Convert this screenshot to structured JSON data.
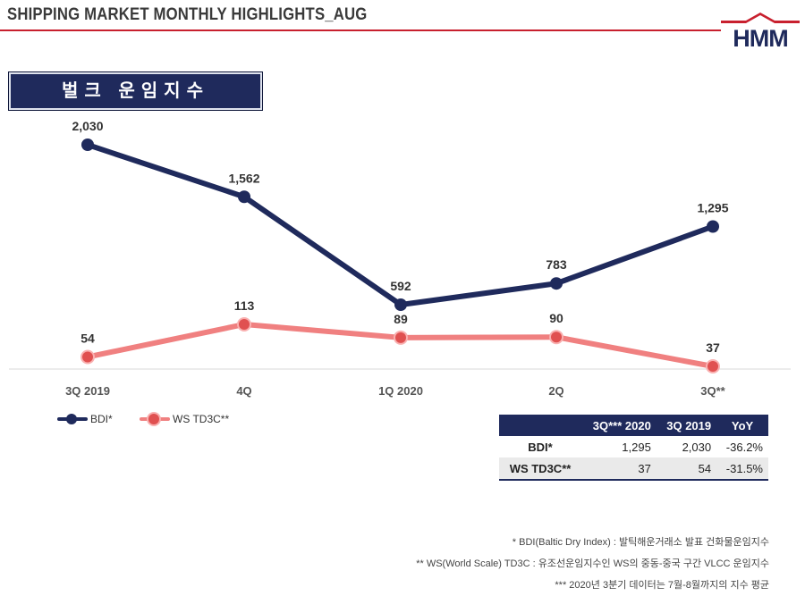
{
  "header": {
    "title": "SHIPPING MARKET MONTHLY HIGHLIGHTS_AUG",
    "logo_text": "HMM",
    "accent_color": "#c8202e",
    "brand_color": "#1f2a5c"
  },
  "section": {
    "label": "벌크 운임지수"
  },
  "chart_data": {
    "type": "line",
    "categories": [
      "3Q 2019",
      "4Q",
      "1Q 2020",
      "2Q",
      "3Q**"
    ],
    "series": [
      {
        "name": "BDI*",
        "values": [
          2030,
          1562,
          592,
          783,
          1295
        ],
        "labels": [
          "2,030",
          "1,562",
          "592",
          "783",
          "1,295"
        ],
        "color": "#1f2a5c"
      },
      {
        "name": "WS TD3C**",
        "values": [
          54,
          113,
          89,
          90,
          37
        ],
        "labels": [
          "54",
          "113",
          "89",
          "90",
          "37"
        ],
        "color": "#f08080"
      }
    ],
    "title": "벌크 운임지수",
    "xlabel": "",
    "ylabel": "",
    "legend_position": "bottom-left"
  },
  "summary_table": {
    "columns": [
      "",
      "3Q*** 2020",
      "3Q 2019",
      "YoY"
    ],
    "rows": [
      {
        "name": "BDI*",
        "cells": [
          "1,295",
          "2,030",
          "-36.2%"
        ]
      },
      {
        "name": "WS TD3C**",
        "cells": [
          "37",
          "54",
          "-31.5%"
        ]
      }
    ]
  },
  "footnotes": [
    "* BDI(Baltic Dry Index) : 발틱해운거래소 발표 건화물운임지수",
    "** WS(World Scale) TD3C : 유조선운임지수인 WS의 중동-중국 구간 VLCC 운임지수",
    "*** 2020년 3분기 데이터는 7월-8월까지의 지수 평균"
  ]
}
